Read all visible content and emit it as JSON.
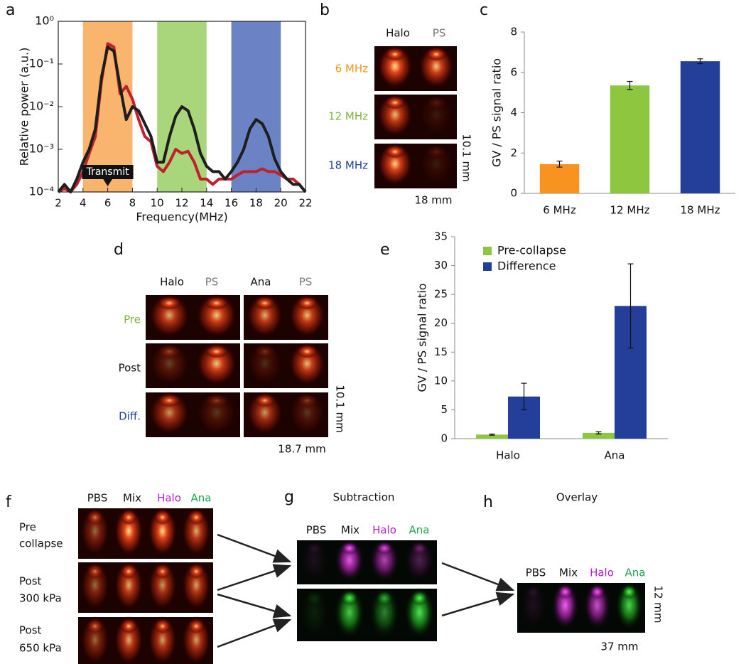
{
  "chart_data": [
    {
      "type": "line",
      "panel": "a",
      "ylabel": "Relative power (a.u.)",
      "xlabel": "Frequency(MHz)",
      "log_y": true,
      "xlim": [
        2,
        22
      ],
      "ylim": [
        0.0001,
        1
      ],
      "xticks": [
        2,
        4,
        6,
        8,
        10,
        12,
        14,
        16,
        18,
        20,
        22
      ],
      "yticks": [
        {
          "value": 0.0001,
          "label": "10⁻⁴"
        },
        {
          "value": 0.001,
          "label": "10⁻³"
        },
        {
          "value": 0.01,
          "label": "10⁻²"
        },
        {
          "value": 0.1,
          "label": "10⁻¹"
        },
        {
          "value": 1,
          "label": "10⁰"
        }
      ],
      "bands": [
        {
          "x": [
            4,
            8
          ],
          "color": "#f9b56e"
        },
        {
          "x": [
            10,
            14
          ],
          "color": "#a9d67a"
        },
        {
          "x": [
            16,
            20
          ],
          "color": "#6b82c4"
        }
      ],
      "annotation": {
        "text": "Transmit",
        "x": 6
      },
      "x": [
        2,
        2.5,
        3,
        3.5,
        4,
        4.5,
        5,
        5.5,
        6,
        6.5,
        7,
        7.5,
        8,
        8.5,
        9,
        9.5,
        10,
        10.5,
        11,
        11.5,
        12,
        12.5,
        13,
        13.5,
        14,
        14.5,
        15,
        15.5,
        16,
        16.5,
        17,
        17.5,
        18,
        18.5,
        19,
        19.5,
        20,
        20.5,
        21,
        21.5,
        22
      ],
      "series": [
        {
          "color": "#c0202e",
          "values": [
            0.0001,
            0.00012,
            0.0001,
            0.00015,
            0.0003,
            0.0008,
            0.002,
            0.04,
            0.3,
            0.25,
            0.02,
            0.03,
            0.015,
            0.005,
            0.002,
            0.0015,
            0.0004,
            0.0003,
            0.0005,
            0.001,
            0.0008,
            0.0009,
            0.0005,
            0.0002,
            0.0002,
            0.00015,
            0.0002,
            0.0002,
            0.0002,
            0.00025,
            0.0003,
            0.0003,
            0.0003,
            0.00035,
            0.0003,
            0.0003,
            0.00025,
            0.0002,
            0.0002,
            0.00015,
            0.0001
          ]
        },
        {
          "color": "#1e1e1e",
          "values": [
            0.0001,
            0.00015,
            0.0001,
            0.0002,
            0.0005,
            0.001,
            0.003,
            0.05,
            0.25,
            0.2,
            0.03,
            0.005,
            0.01,
            0.008,
            0.004,
            0.002,
            0.0005,
            0.0005,
            0.002,
            0.006,
            0.01,
            0.008,
            0.003,
            0.0008,
            0.0004,
            0.0003,
            0.0003,
            0.0002,
            0.0003,
            0.0005,
            0.001,
            0.003,
            0.005,
            0.004,
            0.002,
            0.0006,
            0.0003,
            0.0002,
            0.00015,
            0.00015,
            0.0001
          ]
        }
      ]
    },
    {
      "type": "bar",
      "panel": "c",
      "ylabel": "GV / PS signal ratio",
      "categories": [
        "6 MHz",
        "12 MHz",
        "18 MHz"
      ],
      "values": [
        1.45,
        5.35,
        6.55
      ],
      "errors": [
        0.15,
        0.2,
        0.12
      ],
      "colors": [
        "#f7931e",
        "#8dc63f",
        "#233f99"
      ],
      "ylim": [
        0,
        8
      ],
      "yticks": [
        0,
        2,
        4,
        6,
        8
      ]
    },
    {
      "type": "bar",
      "panel": "e",
      "ylabel": "GV / PS signal ratio",
      "legend": "upper left",
      "categories": [
        "Halo",
        "Ana"
      ],
      "ylim": [
        0,
        35
      ],
      "yticks": [
        0,
        5,
        10,
        15,
        20,
        25,
        30,
        35
      ],
      "series": [
        {
          "name": "Pre-collapse",
          "color": "#8dc63f",
          "values": [
            0.7,
            1.0
          ],
          "errors": [
            0.1,
            0.2
          ]
        },
        {
          "name": "Difference",
          "color": "#233f99",
          "values": [
            7.3,
            23
          ],
          "errors": [
            2.3,
            7.3
          ]
        }
      ]
    }
  ],
  "panels": {
    "b": {
      "panel": "b",
      "columns": [
        "Halo",
        "PS"
      ],
      "rows": [
        "6 MHz",
        "12 MHz",
        "18 MHz"
      ],
      "height": "10.1 mm",
      "width": "18 mm"
    },
    "d": {
      "panel": "d",
      "columns": [
        "Halo",
        "PS",
        "Ana",
        "PS"
      ],
      "rows": [
        "Pre",
        "Post",
        "Diff."
      ],
      "height": "10.1 mm",
      "width": "18.7 mm"
    },
    "f": {
      "panel": "f",
      "columns": [
        "PBS",
        "Mix",
        "Halo",
        "Ana"
      ],
      "rows": [
        [
          "Pre",
          "collapse"
        ],
        [
          "Post",
          "300 kPa"
        ],
        [
          "Post",
          "650 kPa"
        ]
      ]
    },
    "g": {
      "panel": "g",
      "title": "Subtraction",
      "columns": [
        "PBS",
        "Mix",
        "Halo",
        "Ana"
      ]
    },
    "h": {
      "panel": "h",
      "title": "Overlay",
      "columns": [
        "PBS",
        "Mix",
        "Halo",
        "Ana"
      ],
      "height": "12 mm",
      "width": "37 mm"
    }
  }
}
